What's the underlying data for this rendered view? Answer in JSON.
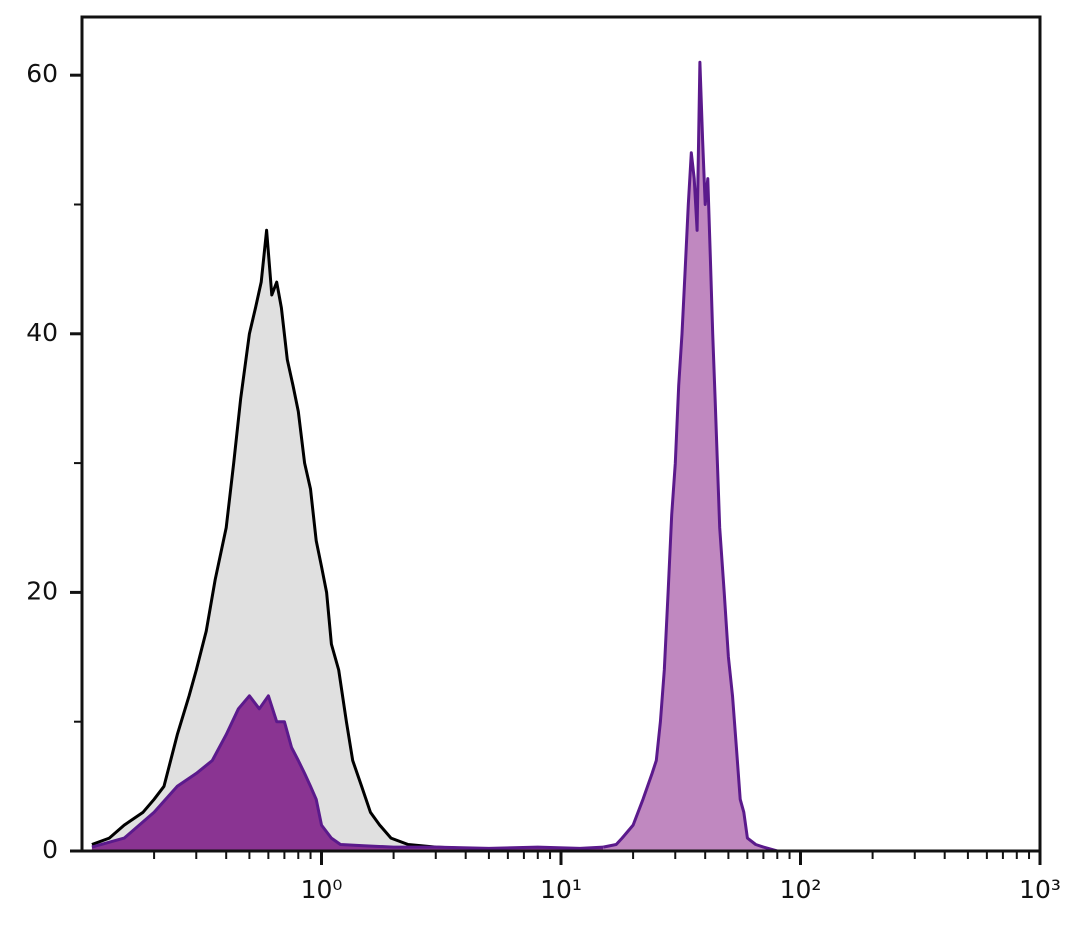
{
  "chart_data": {
    "type": "histogram-overlay",
    "log_x": true,
    "xlim": [
      0.1,
      1000
    ],
    "ylim": [
      0,
      64.5
    ],
    "xticks": [
      {
        "value": 1,
        "label": "10⁰"
      },
      {
        "value": 10,
        "label": "10¹"
      },
      {
        "value": 100,
        "label": "10²"
      },
      {
        "value": 1000,
        "label": "10³"
      }
    ],
    "xminor_ticks": [
      0.2,
      0.3,
      0.4,
      0.5,
      0.6,
      0.7,
      0.8,
      0.9,
      2,
      3,
      4,
      5,
      6,
      7,
      8,
      9,
      20,
      30,
      40,
      50,
      60,
      70,
      80,
      90,
      200,
      300,
      400,
      500,
      600,
      700,
      800,
      900
    ],
    "yticks": [
      0,
      20,
      40,
      60
    ],
    "yminor_ticks": [
      10,
      30,
      50
    ],
    "series": [
      {
        "color": "#000000",
        "fill": "#e0e0e0",
        "x": [
          0.11,
          0.13,
          0.15,
          0.18,
          0.2,
          0.22,
          0.25,
          0.28,
          0.3,
          0.33,
          0.36,
          0.4,
          0.43,
          0.46,
          0.5,
          0.53,
          0.56,
          0.59,
          0.62,
          0.65,
          0.68,
          0.72,
          0.76,
          0.8,
          0.85,
          0.9,
          0.95,
          1.0,
          1.05,
          1.1,
          1.18,
          1.27,
          1.35,
          1.47,
          1.6,
          1.75,
          1.95,
          2.3,
          3,
          4,
          5
        ],
        "values": [
          0.5,
          1,
          2,
          3,
          4,
          5,
          9,
          12,
          14,
          17,
          21,
          25,
          30,
          35,
          40,
          42,
          44,
          48,
          43,
          44,
          42,
          38,
          36,
          34,
          30,
          28,
          24,
          22,
          20,
          16,
          14,
          10,
          7,
          5,
          3,
          2,
          1,
          0.5,
          0.3,
          0.2,
          0
        ]
      },
      {
        "color": "#5b1a8c",
        "fill": "#8a3492",
        "x": [
          0.11,
          0.15,
          0.2,
          0.25,
          0.3,
          0.35,
          0.4,
          0.45,
          0.5,
          0.55,
          0.6,
          0.65,
          0.7,
          0.75,
          0.8,
          0.85,
          0.9,
          0.95,
          1.0,
          1.1,
          1.2,
          1.5,
          2,
          3,
          5,
          8,
          12,
          15
        ],
        "values": [
          0.3,
          1,
          3,
          5,
          6,
          7,
          9,
          11,
          12,
          11,
          12,
          10,
          10,
          8,
          7,
          6,
          5,
          4,
          2,
          1,
          0.5,
          0.4,
          0.3,
          0.3,
          0.2,
          0.3,
          0.2,
          0.3
        ]
      },
      {
        "color": "#5b1a8c",
        "fill": "#c088c0",
        "x": [
          15,
          17,
          18,
          20,
          22,
          24,
          25,
          26,
          27,
          28,
          29,
          30,
          31,
          32,
          33,
          34,
          35,
          36,
          37,
          38,
          39,
          40,
          41,
          42,
          43,
          44,
          45,
          46,
          48,
          50,
          52,
          54,
          56,
          58,
          60,
          65,
          70,
          80
        ],
        "values": [
          0.3,
          0.5,
          1,
          2,
          4,
          6,
          7,
          10,
          14,
          20,
          26,
          30,
          36,
          40,
          45,
          50,
          54,
          52,
          48,
          61,
          55,
          50,
          52,
          46,
          40,
          35,
          30,
          25,
          20,
          15,
          12,
          8,
          4,
          3,
          1,
          0.5,
          0.3,
          0
        ]
      }
    ]
  }
}
